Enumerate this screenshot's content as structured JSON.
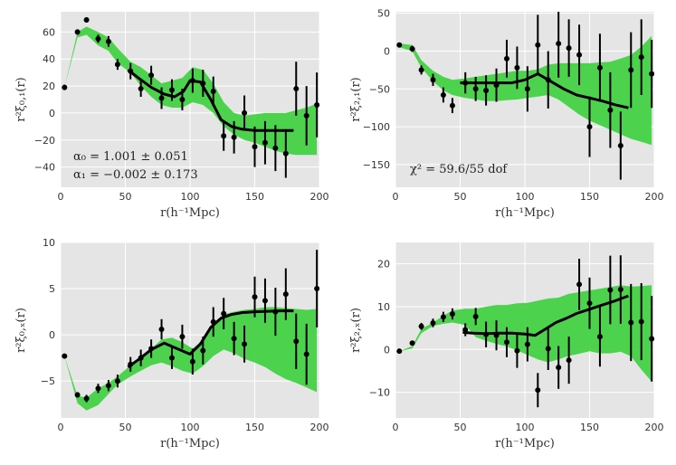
{
  "colors": {
    "background": "#e5e5e5",
    "grid": "#ffffff",
    "band": "#3ccf3c",
    "model": "#000000",
    "points": "#000000"
  },
  "chart_data": [
    {
      "id": "xi01",
      "type": "line",
      "ylabel": "r²ξ₀,₁(r)",
      "xlabel": "r(h⁻¹Mpc)",
      "xlim": [
        0,
        200
      ],
      "ylim": [
        -55,
        75
      ],
      "xticks": [
        0,
        50,
        100,
        150,
        200
      ],
      "xtick_labels": [
        "0",
        "50",
        "100",
        "150",
        "200"
      ],
      "yticks": [
        -40,
        -20,
        0,
        20,
        40,
        60
      ],
      "ytick_labels": [
        "−40",
        "−20",
        "0",
        "20",
        "40",
        "60"
      ],
      "annotations": [
        "α₀ =    1.001 ± 0.051",
        "α₁ = −0.002 ± 0.173"
      ],
      "points": {
        "x": [
          3,
          13,
          20,
          29,
          37,
          44,
          54,
          62,
          70,
          78,
          86,
          94,
          102,
          110,
          118,
          126,
          134,
          142,
          150,
          158,
          166,
          174,
          182,
          190,
          198
        ],
        "y": [
          19,
          60,
          69,
          55,
          53,
          36,
          31,
          18,
          28,
          11,
          17,
          10,
          24,
          22,
          16,
          -17,
          -18,
          0,
          -25,
          -22,
          -26,
          -30,
          18,
          -2,
          6
        ],
        "err": [
          2,
          2,
          2,
          3,
          4,
          4,
          6,
          6,
          7,
          8,
          8,
          8,
          9,
          10,
          11,
          11,
          12,
          13,
          15,
          16,
          17,
          18,
          20,
          22,
          24
        ]
      },
      "model": {
        "x": [
          52,
          60,
          70,
          80,
          88,
          95,
          100,
          108,
          116,
          124,
          132,
          140,
          150,
          160,
          170,
          180
        ],
        "y": [
          32,
          26,
          19,
          14,
          12,
          16,
          24,
          23,
          10,
          -5,
          -10,
          -12,
          -13,
          -13,
          -13,
          -13
        ]
      },
      "band": {
        "x": [
          3,
          13,
          20,
          29,
          37,
          44,
          54,
          62,
          70,
          78,
          86,
          94,
          102,
          110,
          118,
          126,
          134,
          142,
          150,
          158,
          166,
          174,
          182,
          190,
          198
        ],
        "lo": [
          19,
          56,
          58,
          50,
          46,
          37,
          30,
          20,
          12,
          6,
          4,
          4,
          8,
          6,
          0,
          -10,
          -16,
          -20,
          -22,
          -25,
          -28,
          -30,
          -31,
          -31,
          -31
        ],
        "hi": [
          19,
          60,
          64,
          60,
          56,
          48,
          38,
          34,
          28,
          22,
          24,
          26,
          34,
          32,
          22,
          8,
          0,
          -2,
          -1,
          0,
          0,
          0,
          2,
          4,
          7
        ]
      }
    },
    {
      "id": "xi21",
      "type": "line",
      "ylabel": "r²ξ₂,₁(r)",
      "xlabel": "r(h⁻¹Mpc)",
      "xlim": [
        0,
        200
      ],
      "ylim": [
        -180,
        52
      ],
      "xticks": [
        0,
        50,
        100,
        150,
        200
      ],
      "xtick_labels": [
        "0",
        "50",
        "100",
        "150",
        "200"
      ],
      "yticks": [
        -150,
        -100,
        -50,
        0,
        50
      ],
      "ytick_labels": [
        "−150",
        "−100",
        "−50",
        "0",
        "50"
      ],
      "annotations": [
        "χ² = 59.6/55 dof"
      ],
      "points": {
        "x": [
          3,
          13,
          20,
          29,
          37,
          44,
          54,
          62,
          70,
          78,
          86,
          94,
          102,
          110,
          118,
          126,
          134,
          142,
          150,
          158,
          166,
          174,
          182,
          190,
          198
        ],
        "y": [
          8,
          3,
          -25,
          -38,
          -58,
          -72,
          -42,
          -50,
          -52,
          -45,
          -10,
          -22,
          -50,
          8,
          -38,
          10,
          4,
          -5,
          -100,
          -22,
          -78,
          -125,
          -25,
          -8,
          -30
        ],
        "err": [
          3,
          4,
          6,
          8,
          10,
          10,
          14,
          16,
          20,
          22,
          25,
          28,
          30,
          40,
          38,
          45,
          38,
          40,
          40,
          45,
          50,
          45,
          50,
          50,
          45
        ]
      },
      "model": {
        "x": [
          50,
          60,
          70,
          80,
          90,
          100,
          110,
          120,
          130,
          140,
          150,
          160,
          170,
          180
        ],
        "y": [
          -42,
          -42,
          -42,
          -42,
          -42,
          -38,
          -30,
          -40,
          -50,
          -58,
          -62,
          -66,
          -71,
          -75
        ]
      },
      "band": {
        "x": [
          3,
          13,
          20,
          29,
          37,
          44,
          54,
          62,
          70,
          78,
          86,
          94,
          102,
          110,
          118,
          126,
          134,
          142,
          150,
          158,
          166,
          174,
          182,
          190,
          198
        ],
        "lo": [
          5,
          0,
          -22,
          -40,
          -52,
          -58,
          -62,
          -64,
          -66,
          -66,
          -65,
          -64,
          -62,
          -60,
          -58,
          -64,
          -74,
          -84,
          -92,
          -98,
          -104,
          -110,
          -116,
          -120,
          -124
        ],
        "hi": [
          10,
          8,
          -12,
          -26,
          -34,
          -38,
          -36,
          -34,
          -32,
          -30,
          -28,
          -26,
          -26,
          -24,
          -18,
          -16,
          -16,
          -16,
          -16,
          -15,
          -14,
          -10,
          -5,
          6,
          20
        ]
      }
    },
    {
      "id": "xi0x",
      "type": "line",
      "ylabel": "r²ξ₀,ₓ(r)",
      "xlabel": "r(h⁻¹Mpc)",
      "xlim": [
        0,
        200
      ],
      "ylim": [
        -9,
        10
      ],
      "xticks": [
        0,
        50,
        100,
        150,
        200
      ],
      "xtick_labels": [
        "0",
        "50",
        "100",
        "150",
        "200"
      ],
      "yticks": [
        -5,
        0,
        5,
        10
      ],
      "ytick_labels": [
        "−5",
        "0",
        "5",
        "10"
      ],
      "annotations": [],
      "points": {
        "x": [
          3,
          13,
          20,
          29,
          37,
          44,
          54,
          62,
          70,
          78,
          86,
          94,
          102,
          110,
          118,
          126,
          134,
          142,
          150,
          158,
          166,
          174,
          182,
          190,
          198
        ],
        "y": [
          -2.3,
          -6.5,
          -6.9,
          -5.8,
          -5.5,
          -5,
          -3.2,
          -2.5,
          -1.5,
          0.6,
          -2.5,
          -0.2,
          -2.9,
          -1.7,
          1.4,
          2.3,
          -0.4,
          -1,
          4.1,
          3.7,
          2.5,
          4.4,
          -0.7,
          -2.1,
          5
        ],
        "err": [
          0.2,
          0.3,
          0.4,
          0.5,
          0.6,
          0.7,
          0.8,
          0.9,
          1,
          1.1,
          1.2,
          1.3,
          1.4,
          1.5,
          1.6,
          1.7,
          1.8,
          2,
          2.2,
          2.4,
          2.6,
          2.8,
          3,
          3.3,
          4.2
        ]
      },
      "model": {
        "x": [
          52,
          60,
          70,
          80,
          90,
          100,
          108,
          116,
          124,
          132,
          140,
          150,
          160,
          170,
          180
        ],
        "y": [
          -3.5,
          -2.7,
          -1.6,
          -0.9,
          -1.5,
          -2.1,
          -1,
          0.8,
          1.8,
          2.2,
          2.4,
          2.5,
          2.55,
          2.6,
          2.6
        ]
      },
      "band": {
        "x": [
          3,
          13,
          20,
          29,
          37,
          44,
          54,
          62,
          70,
          78,
          86,
          94,
          102,
          110,
          118,
          126,
          134,
          142,
          150,
          158,
          166,
          174,
          182,
          190,
          198
        ],
        "lo": [
          -2.3,
          -7.4,
          -8.2,
          -7.6,
          -6.4,
          -5.4,
          -4.5,
          -3.9,
          -3.3,
          -3,
          -3.4,
          -3.9,
          -4.2,
          -3.4,
          -2.3,
          -1.6,
          -2,
          -2.6,
          -3,
          -3.5,
          -4.2,
          -4.8,
          -5.2,
          -5.7,
          -6.2
        ],
        "hi": [
          -2.3,
          -6.6,
          -6.8,
          -5.8,
          -5.2,
          -4.5,
          -3.3,
          -2.5,
          -1.5,
          -0.5,
          -0.3,
          -0.8,
          -1.5,
          -0.5,
          1.3,
          2.2,
          2.5,
          2.7,
          2.8,
          3,
          3,
          2.9,
          2.8,
          2.7,
          2.8
        ]
      }
    },
    {
      "id": "xi2x",
      "type": "line",
      "ylabel": "r²ξ₂,ₓ(r)",
      "xlabel": "r(h⁻¹Mpc)",
      "xlim": [
        0,
        200
      ],
      "ylim": [
        -16,
        25
      ],
      "xticks": [
        0,
        50,
        100,
        150,
        200
      ],
      "xtick_labels": [
        "0",
        "50",
        "100",
        "150",
        "200"
      ],
      "yticks": [
        -10,
        0,
        10,
        20
      ],
      "ytick_labels": [
        "−10",
        "0",
        "10",
        "20"
      ],
      "annotations": [],
      "points": {
        "x": [
          3,
          13,
          20,
          29,
          37,
          44,
          54,
          62,
          70,
          78,
          86,
          94,
          102,
          110,
          118,
          126,
          134,
          142,
          150,
          158,
          166,
          174,
          182,
          190,
          198
        ],
        "y": [
          -0.4,
          1.5,
          5.4,
          6.2,
          7.6,
          8.3,
          4.6,
          7.7,
          3.5,
          3.3,
          1.7,
          -0.3,
          1.2,
          -9.5,
          0.2,
          -4.2,
          -2.5,
          15.2,
          10.8,
          3,
          13.9,
          14,
          6.3,
          6.5,
          2.5
        ],
        "err": [
          0.3,
          0.4,
          0.8,
          1,
          1.2,
          1.3,
          1.5,
          2,
          3,
          3.5,
          3.5,
          4,
          4,
          4,
          5,
          5,
          5.5,
          6,
          6,
          7,
          8,
          8,
          9,
          9,
          10
        ]
      },
      "model": {
        "x": [
          52,
          60,
          70,
          80,
          90,
          100,
          108,
          116,
          124,
          132,
          140,
          150,
          160,
          170,
          180
        ],
        "y": [
          4,
          3.8,
          3.7,
          3.8,
          3.8,
          3.6,
          3.3,
          4.8,
          6.3,
          7.3,
          8.4,
          9.4,
          10.4,
          11.4,
          12.5
        ]
      },
      "band": {
        "x": [
          3,
          13,
          20,
          29,
          37,
          44,
          54,
          62,
          70,
          78,
          86,
          94,
          102,
          110,
          118,
          126,
          134,
          142,
          150,
          158,
          166,
          174,
          182,
          190,
          198
        ],
        "lo": [
          -0.4,
          0.2,
          3.8,
          5.5,
          6,
          6.3,
          5.7,
          2.9,
          2,
          1.3,
          0.7,
          -0.2,
          -1.3,
          -2.3,
          -3,
          -2.3,
          -1.5,
          -1,
          -0.4,
          -0.9,
          -0.9,
          -0.5,
          -1.6,
          -4.7,
          -7.5
        ],
        "hi": [
          -0.4,
          0.8,
          4.8,
          6.3,
          7.9,
          9.1,
          9.5,
          9.5,
          10,
          10.4,
          10.4,
          10.8,
          10.9,
          11.4,
          11.9,
          12.1,
          13,
          13.4,
          13.8,
          14.2,
          14.6,
          15,
          14.7,
          14.8,
          15
        ]
      }
    }
  ]
}
